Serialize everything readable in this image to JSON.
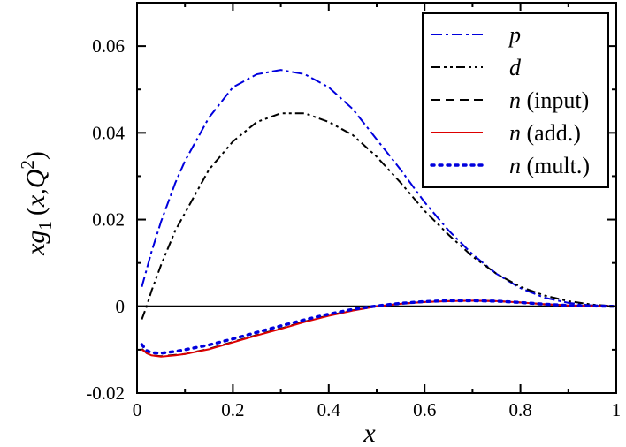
{
  "chart_data": {
    "type": "line",
    "title": "",
    "xlabel": "x",
    "ylabel": {
      "prefix": "xg",
      "subscript": "1",
      "open": "(",
      "var": "x",
      "comma": ",",
      "Q": "Q",
      "superscript": "2",
      "close": ")"
    },
    "xlim": [
      0,
      1
    ],
    "ylim": [
      -0.02,
      0.07
    ],
    "xticks": [
      0,
      0.2,
      0.4,
      0.6,
      0.8,
      1
    ],
    "xtick_labels": [
      "0",
      "0.2",
      "0.4",
      "0.6",
      "0.8",
      "1"
    ],
    "yticks": [
      -0.02,
      0,
      0.02,
      0.04,
      0.06
    ],
    "ytick_labels": [
      "-0.02",
      "0",
      "0.02",
      "0.04",
      "0.06"
    ],
    "grid": false,
    "legend_position": "top-right",
    "zero_line": true,
    "series": [
      {
        "name": "p",
        "label_italic": "p",
        "label_rest": "",
        "color": "#0000dd",
        "dash": "dashdot",
        "x": [
          0.01,
          0.02,
          0.03,
          0.05,
          0.08,
          0.1,
          0.15,
          0.2,
          0.25,
          0.3,
          0.35,
          0.4,
          0.45,
          0.5,
          0.55,
          0.6,
          0.65,
          0.7,
          0.75,
          0.8,
          0.85,
          0.9,
          0.95,
          1.0
        ],
        "y": [
          0.0045,
          0.0085,
          0.0125,
          0.0195,
          0.0285,
          0.0335,
          0.0435,
          0.0505,
          0.0535,
          0.0545,
          0.0535,
          0.0505,
          0.0455,
          0.0385,
          0.0315,
          0.024,
          0.0175,
          0.012,
          0.0075,
          0.0042,
          0.002,
          0.0008,
          0.0002,
          0.0
        ]
      },
      {
        "name": "d",
        "label_italic": "d",
        "label_rest": "",
        "color": "#000000",
        "dash": "dashdotdot",
        "x": [
          0.01,
          0.02,
          0.03,
          0.05,
          0.08,
          0.1,
          0.15,
          0.2,
          0.25,
          0.3,
          0.35,
          0.4,
          0.45,
          0.5,
          0.55,
          0.6,
          0.65,
          0.7,
          0.75,
          0.8,
          0.85,
          0.9,
          0.95,
          1.0
        ],
        "y": [
          -0.003,
          0.0,
          0.0035,
          0.0095,
          0.0175,
          0.0215,
          0.0315,
          0.038,
          0.0425,
          0.0445,
          0.0445,
          0.0425,
          0.0395,
          0.0345,
          0.0285,
          0.022,
          0.0165,
          0.0115,
          0.0075,
          0.0045,
          0.0025,
          0.0012,
          0.0004,
          0.0
        ]
      },
      {
        "name": "n (input)",
        "label_italic": "n",
        "label_rest": " (input)",
        "color": "#000000",
        "dash": "dashed",
        "x": [
          0.01,
          0.02,
          0.03,
          0.05,
          0.08,
          0.1,
          0.15,
          0.2,
          0.25,
          0.3,
          0.35,
          0.4,
          0.45,
          0.5,
          0.55,
          0.6,
          0.65,
          0.7,
          0.75,
          0.8,
          0.85,
          0.9,
          0.95,
          1.0
        ],
        "y": [
          -0.0098,
          -0.0108,
          -0.0113,
          -0.0115,
          -0.0112,
          -0.011,
          -0.0098,
          -0.0082,
          -0.0066,
          -0.0051,
          -0.0035,
          -0.0021,
          -0.0009,
          0.0,
          0.0006,
          0.001,
          0.0012,
          0.0013,
          0.0012,
          0.0009,
          0.0005,
          0.0002,
          0.0001,
          0.0
        ]
      },
      {
        "name": "n (add.)",
        "label_italic": "n",
        "label_rest": " (add.)",
        "color": "#dd0000",
        "dash": "solid",
        "x": [
          0.01,
          0.015,
          0.02,
          0.03,
          0.05,
          0.08,
          0.1,
          0.15,
          0.2,
          0.25,
          0.3,
          0.35,
          0.4,
          0.45,
          0.5,
          0.55,
          0.6,
          0.65,
          0.7,
          0.75,
          0.8,
          0.85,
          0.9,
          0.95,
          1.0
        ],
        "y": [
          -0.01,
          -0.0103,
          -0.0108,
          -0.0113,
          -0.0116,
          -0.0113,
          -0.011,
          -0.0099,
          -0.0083,
          -0.0067,
          -0.0052,
          -0.0036,
          -0.0022,
          -0.001,
          0.0,
          0.0006,
          0.001,
          0.0012,
          0.0013,
          0.0012,
          0.0009,
          0.0005,
          0.0002,
          0.0001,
          0.0
        ]
      },
      {
        "name": "n (mult.)",
        "label_italic": "n",
        "label_rest": " (mult.)",
        "color": "#0000dd",
        "dash": "dotted",
        "x": [
          0.01,
          0.015,
          0.02,
          0.03,
          0.05,
          0.08,
          0.1,
          0.15,
          0.2,
          0.25,
          0.3,
          0.35,
          0.4,
          0.45,
          0.5,
          0.55,
          0.6,
          0.65,
          0.7,
          0.75,
          0.8,
          0.85,
          0.9,
          0.95,
          1.0
        ],
        "y": [
          -0.0088,
          -0.0095,
          -0.0102,
          -0.0107,
          -0.0108,
          -0.0104,
          -0.01,
          -0.0089,
          -0.0075,
          -0.006,
          -0.0045,
          -0.0031,
          -0.0018,
          -0.0007,
          0.0001,
          0.0007,
          0.0011,
          0.0013,
          0.0013,
          0.0012,
          0.0009,
          0.0005,
          0.0002,
          0.0001,
          0.0
        ]
      }
    ]
  }
}
